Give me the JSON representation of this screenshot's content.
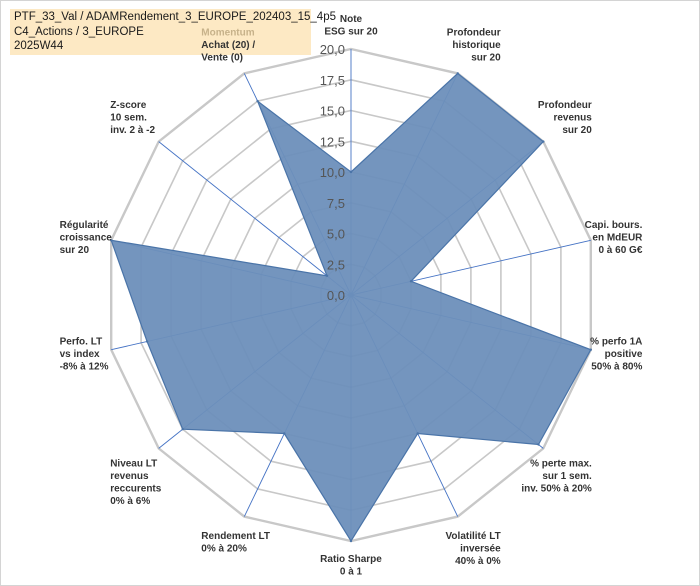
{
  "title_lines": [
    "PTF_33_Val / ADAMRendement_3_EUROPE_202403_15_4p5",
    "C4_Actions / 3_EUROPE",
    "2025W44"
  ],
  "colors": {
    "fill": "#6d8fba",
    "outline": "#4a74a8",
    "grid": "#c8c8c8",
    "spoke": "#4472c4",
    "title_bg": "#fde9c4",
    "highlight_label": "#c7b28a"
  },
  "chart_data": {
    "type": "radar",
    "title": "PTF_33_Val / ADAMRendement_3_EUROPE_202403_15_4p5 C4_Actions / 3_EUROPE 2025W44",
    "rlim": [
      0,
      20
    ],
    "tick_values": [
      0,
      2.5,
      5,
      7.5,
      10,
      12.5,
      15,
      17.5,
      20
    ],
    "tick_labels": [
      "0,0",
      "2,5",
      "5,0",
      "7,5",
      "10,0",
      "12,5",
      "15,0",
      "17,5",
      "20,0"
    ],
    "grid": true,
    "categories": [
      [
        "Note",
        "ESG sur 20"
      ],
      [
        "Profondeur",
        "historique",
        "sur 20"
      ],
      [
        "Profondeur",
        "revenus",
        "sur 20"
      ],
      [
        "Capi. bours.",
        "en MdEUR",
        "0 à 60 G€"
      ],
      [
        "% perfo 1A",
        "positive",
        "50% à 80%"
      ],
      [
        "% perte max.",
        "sur 1 sem.",
        "inv. 50% à 20%"
      ],
      [
        "Volatilité LT",
        "inversée",
        "40% à 0%"
      ],
      [
        "Ratio Sharpe",
        "0 à 1"
      ],
      [
        "Rendement LT",
        "0% à 20%"
      ],
      [
        "Niveau LT",
        "revenus",
        "reccurents",
        "0% à 6%"
      ],
      [
        "Perfo. LT",
        "vs index",
        "-8% à 12%"
      ],
      [
        "Régularité",
        "croissance",
        "sur 20"
      ],
      [
        "Z-score",
        "10 sem.",
        "inv. 2 à -2"
      ],
      [
        "Momentum",
        "Achat (20) /",
        "Vente (0)"
      ]
    ],
    "series": [
      {
        "values": [
          10,
          20,
          20,
          5,
          20,
          19.5,
          12.5,
          20,
          12.5,
          17.5,
          17,
          20,
          2.5,
          17.5
        ]
      }
    ]
  }
}
